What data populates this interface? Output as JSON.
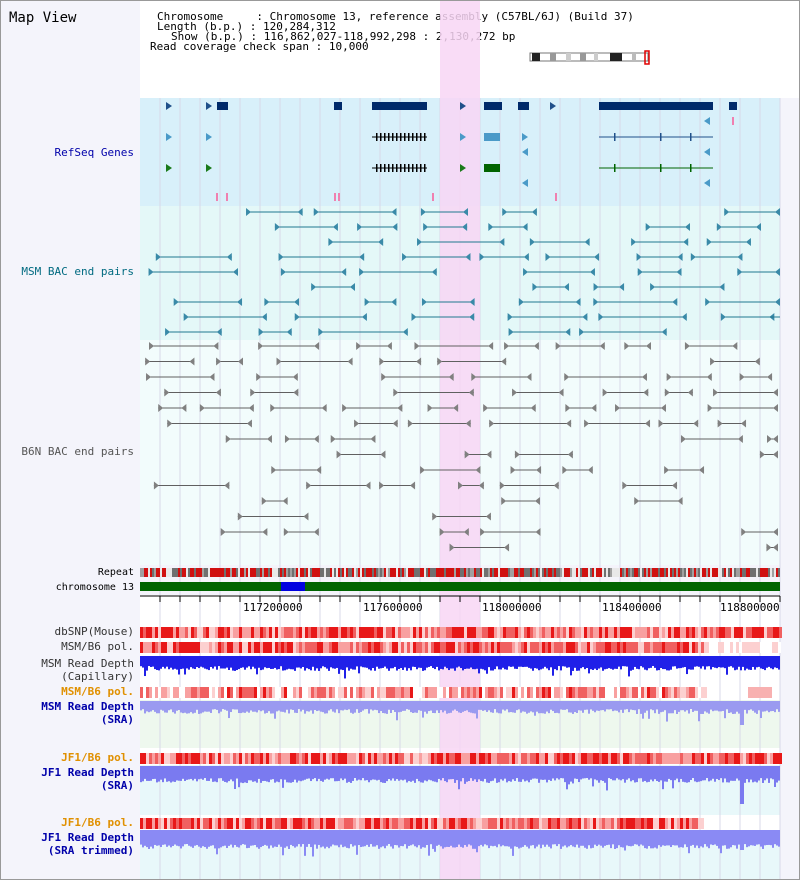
{
  "view": {
    "title": "Map View",
    "info": {
      "chromosome_label": "Chromosome",
      "chromosome_value": "Chromosome 13, reference assembly (C57BL/6J) (Build 37)",
      "length_label": "Length (b.p.)",
      "length_value": "120,284,312",
      "show_label": "Show (b.p.)",
      "show_value": "116,862,027-118,992,298 : 2,130,272 bp",
      "coverage_label": "Read coverage check span",
      "coverage_value": "10,000"
    },
    "selection_color": "#f8d6f4"
  },
  "tracks": {
    "refseq": {
      "label": "RefSeq Genes",
      "color": "#0000aa",
      "bg": "#d8f0fa"
    },
    "msm_bac": {
      "label": "MSM BAC end pairs",
      "color": "#006a80",
      "bg": "#e4f8f8"
    },
    "b6n_bac": {
      "label": "B6N BAC end pairs",
      "color": "#555555",
      "bg": "#f2fcfc"
    },
    "repeat": {
      "label": "Repeat"
    },
    "chromosome": {
      "label": "chromosome 13",
      "color": "#006400"
    },
    "dbsnp": {
      "label": "dbSNP(Mouse)"
    },
    "msm_b6_pol": {
      "label": "MSM/B6 pol."
    },
    "msm_read_depth_cap": {
      "label_line1": "MSM Read Depth",
      "label_line2": "(Capillary)"
    },
    "msm_b6_pol_sra": {
      "label": "MSM/B6 pol.",
      "color": "#e09000"
    },
    "msm_read_depth_sra": {
      "label_line1": "MSM Read Depth",
      "label_line2": "(SRA)",
      "color": "#0000aa"
    },
    "jf1_b6_pol": {
      "label": "JF1/B6 pol.",
      "color": "#e09000"
    },
    "jf1_read_depth": {
      "label_line1": "JF1 Read Depth",
      "label_line2": "(SRA)",
      "color": "#0000aa"
    },
    "jf1_b6_pol_trim": {
      "label": "JF1/B6 pol.",
      "color": "#e09000"
    },
    "jf1_read_depth_trim": {
      "label_line1": "JF1 Read Depth",
      "label_line2": "(SRA trimmed)",
      "color": "#0000aa"
    }
  },
  "axis": {
    "ticks": [
      "117200000",
      "117600000",
      "118000000",
      "118400000",
      "118800000"
    ]
  }
}
